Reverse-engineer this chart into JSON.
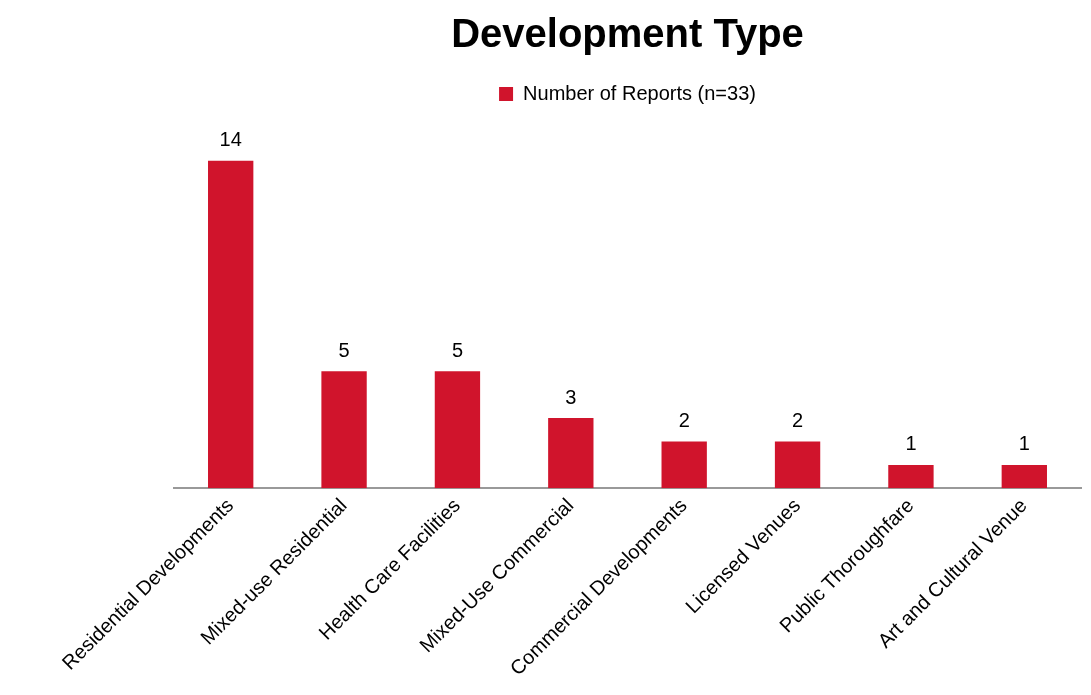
{
  "chart_data": {
    "type": "bar",
    "title": "Development Type",
    "categories": [
      "Residential Developments",
      "Mixed-use Residential",
      "Health Care Facilities",
      "Mixed-Use Commercial",
      "Commercial Developments",
      "Licensed Venues",
      "Public Thoroughfare",
      "Art and Cultural Venue"
    ],
    "series": [
      {
        "name": "Number of Reports (n=33)",
        "color": "#d0142c",
        "values": [
          14,
          5,
          5,
          3,
          2,
          2,
          1,
          1
        ]
      }
    ],
    "data_labels": true,
    "legend": "top",
    "grid": false
  }
}
